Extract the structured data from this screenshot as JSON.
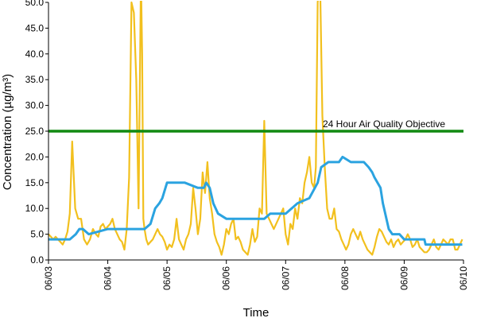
{
  "chart_data": {
    "type": "line",
    "title": "",
    "xlabel": "Time",
    "ylabel": "Concentration (µg/m³)",
    "ylim": [
      0,
      50
    ],
    "yticks": [
      "0.0",
      "5.0",
      "10.0",
      "15.0",
      "20.0",
      "25.0",
      "30.0",
      "35.0",
      "40.0",
      "45.0",
      "50.0"
    ],
    "x_range": [
      "06/03",
      "06/10"
    ],
    "x_ticks": [
      "06/03",
      "06/04",
      "06/05",
      "06/06",
      "06/07",
      "06/08",
      "06/09",
      "06/10"
    ],
    "grid": false,
    "colors": {
      "hourly": "#f2c01e",
      "rolling": "#2ba3e0",
      "objective": "#118a11"
    },
    "objective": {
      "value": 25,
      "label": "24 Hour Air Quality Objective"
    },
    "series": [
      {
        "key": "hourly",
        "x": [
          0,
          0.04,
          0.08,
          0.12,
          0.16,
          0.2,
          0.24,
          0.28,
          0.32,
          0.36,
          0.4,
          0.45,
          0.5,
          0.55,
          0.6,
          0.65,
          0.7,
          0.75,
          0.8,
          0.84,
          0.88,
          0.92,
          0.96,
          1.0,
          1.04,
          1.08,
          1.12,
          1.16,
          1.2,
          1.24,
          1.28,
          1.32,
          1.36,
          1.4,
          1.44,
          1.48,
          1.52,
          1.56,
          1.58,
          1.6,
          1.62,
          1.65,
          1.68,
          1.72,
          1.76,
          1.8,
          1.84,
          1.88,
          1.92,
          1.96,
          2.0,
          2.04,
          2.08,
          2.12,
          2.16,
          2.2,
          2.24,
          2.28,
          2.32,
          2.36,
          2.4,
          2.44,
          2.48,
          2.52,
          2.56,
          2.6,
          2.64,
          2.68,
          2.72,
          2.76,
          2.8,
          2.84,
          2.88,
          2.92,
          2.96,
          3.0,
          3.04,
          3.08,
          3.12,
          3.16,
          3.2,
          3.24,
          3.28,
          3.32,
          3.36,
          3.4,
          3.44,
          3.48,
          3.52,
          3.56,
          3.6,
          3.64,
          3.68,
          3.72,
          3.76,
          3.8,
          3.84,
          3.88,
          3.92,
          3.96,
          4.0,
          4.04,
          4.08,
          4.12,
          4.16,
          4.2,
          4.24,
          4.28,
          4.32,
          4.36,
          4.4,
          4.44,
          4.48,
          4.51,
          4.54,
          4.58,
          4.62,
          4.66,
          4.7,
          4.74,
          4.78,
          4.82,
          4.86,
          4.9,
          4.94,
          4.98,
          5.02,
          5.06,
          5.1,
          5.14,
          5.18,
          5.22,
          5.26,
          5.3,
          5.34,
          5.38,
          5.42,
          5.46,
          5.5,
          5.54,
          5.58,
          5.62,
          5.66,
          5.7,
          5.74,
          5.78,
          5.82,
          5.86,
          5.9,
          5.94,
          5.98,
          6.02,
          6.06,
          6.1,
          6.14,
          6.18,
          6.22,
          6.26,
          6.3,
          6.34,
          6.38,
          6.42,
          6.46,
          6.5,
          6.54,
          6.58,
          6.62,
          6.66,
          6.7,
          6.74,
          6.78,
          6.82,
          6.86,
          6.9,
          6.94,
          6.98
        ],
        "y": [
          5,
          4.5,
          4,
          4.5,
          4,
          3.5,
          3,
          4,
          5.5,
          9,
          23,
          10,
          8,
          8,
          4,
          3,
          4,
          6,
          5,
          4.5,
          6.5,
          7,
          6,
          6.5,
          7,
          8,
          6,
          5,
          4,
          3.5,
          2,
          6,
          16,
          50,
          48,
          35,
          10,
          55,
          40,
          8,
          6,
          4,
          3,
          3.5,
          4,
          5,
          6,
          5,
          4.5,
          3.5,
          2,
          3,
          2.5,
          4,
          8,
          4,
          3,
          2,
          4,
          5,
          7,
          14,
          10,
          5,
          8,
          17,
          13,
          19,
          12,
          9,
          5,
          3.5,
          2.5,
          1,
          3,
          6,
          5,
          7,
          8,
          4,
          4.5,
          3.5,
          2,
          1.5,
          1,
          3,
          6,
          3.5,
          4.5,
          10,
          9,
          27,
          9,
          8,
          7,
          6,
          7,
          8,
          9,
          10,
          5,
          3,
          7,
          6,
          10,
          8,
          12,
          11,
          15,
          17,
          20,
          15,
          14,
          18,
          50,
          55,
          28,
          18,
          10,
          8,
          8,
          10,
          6,
          5.5,
          4,
          3,
          2,
          3,
          5,
          6,
          5,
          4,
          5.5,
          4,
          3,
          2,
          1.5,
          1,
          2.5,
          4.5,
          6,
          5.5,
          4.5,
          3.5,
          3,
          4,
          2.5,
          3.5,
          4,
          3,
          3.5,
          4,
          5,
          4,
          2.5,
          3,
          4,
          2.5,
          2,
          1.5,
          1.5,
          2,
          3,
          4,
          2.5,
          2,
          3,
          4,
          3.5,
          3,
          4,
          4,
          2,
          2,
          3,
          4
        ]
      },
      {
        "key": "rolling",
        "x": [
          0,
          0.2,
          0.36,
          0.46,
          0.52,
          0.58,
          0.68,
          1.0,
          1.62,
          1.72,
          1.8,
          1.87,
          1.92,
          2.0,
          2.2,
          2.3,
          2.52,
          2.62,
          2.66,
          2.72,
          2.78,
          2.86,
          3.0,
          3.2,
          3.46,
          3.5,
          3.54,
          3.64,
          3.74,
          3.84,
          3.96,
          4.0,
          4.2,
          4.4,
          4.54,
          4.6,
          4.72,
          4.86,
          4.9,
          4.96,
          5.1,
          5.2,
          5.32,
          5.4,
          5.46,
          5.5,
          5.6,
          5.64,
          5.66,
          5.74,
          5.8,
          5.92,
          6.0,
          6.1,
          6.2,
          6.34,
          6.36,
          6.58,
          6.6,
          6.76,
          6.98
        ],
        "y": [
          4,
          4,
          4,
          5,
          6,
          6,
          5,
          6,
          6,
          7,
          10,
          11,
          12,
          15,
          15,
          15,
          14,
          14,
          15,
          14,
          11,
          9,
          8,
          8,
          8,
          8,
          8,
          8,
          9,
          9,
          9,
          9,
          11,
          12,
          15,
          18,
          19,
          19,
          19,
          20,
          19,
          19,
          19,
          18,
          17,
          16,
          14,
          11,
          10,
          6,
          5,
          5,
          4,
          4,
          4,
          4,
          3,
          3,
          3,
          3,
          3
        ]
      }
    ]
  }
}
